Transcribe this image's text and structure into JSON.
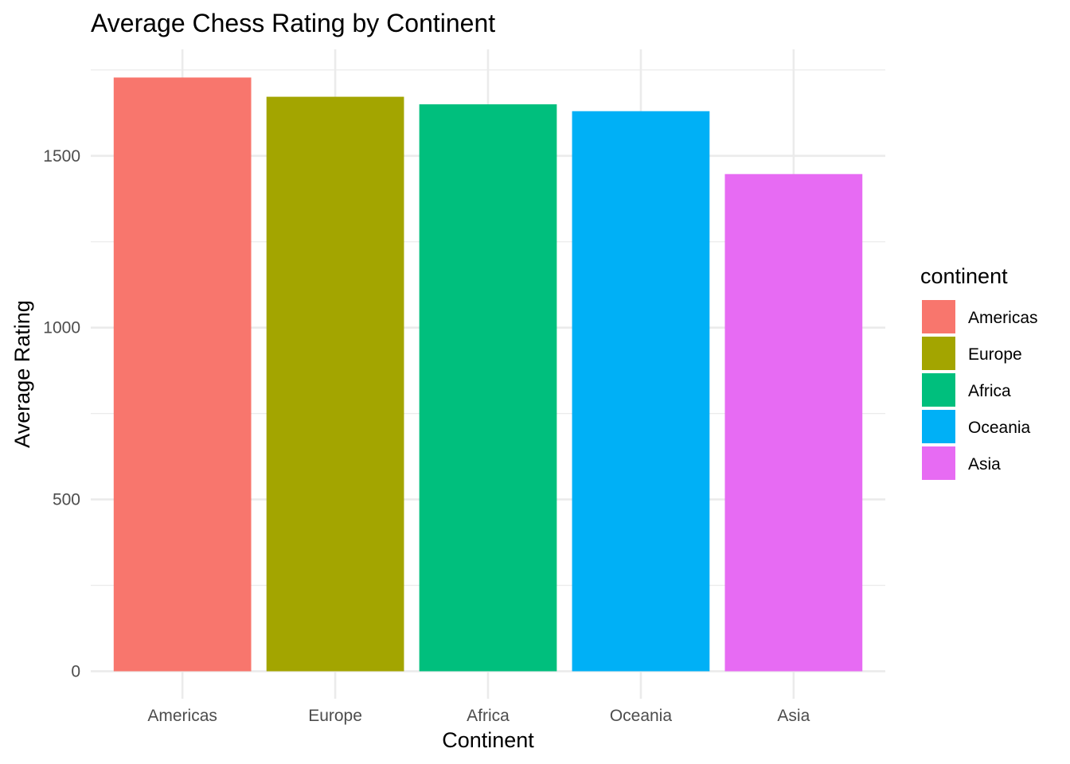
{
  "chart_data": {
    "type": "bar",
    "title": "Average Chess Rating by Continent",
    "xlabel": "Continent",
    "ylabel": "Average Rating",
    "categories": [
      "Americas",
      "Europe",
      "Africa",
      "Oceania",
      "Asia"
    ],
    "values": [
      1728,
      1672,
      1650,
      1630,
      1447
    ],
    "colors": [
      "#F8766D",
      "#A3A500",
      "#00BF7D",
      "#00B0F6",
      "#E76BF3"
    ],
    "ylim": [
      -80,
      1810
    ],
    "yticks": [
      0,
      500,
      1000,
      1500
    ],
    "ytick_labels": [
      "0",
      "500",
      "1000",
      "1500"
    ],
    "yminor": [
      250,
      750,
      1250,
      1750
    ],
    "grid": true,
    "legend": {
      "title": "continent",
      "position": "right",
      "items": [
        "Americas",
        "Europe",
        "Africa",
        "Oceania",
        "Asia"
      ]
    }
  }
}
